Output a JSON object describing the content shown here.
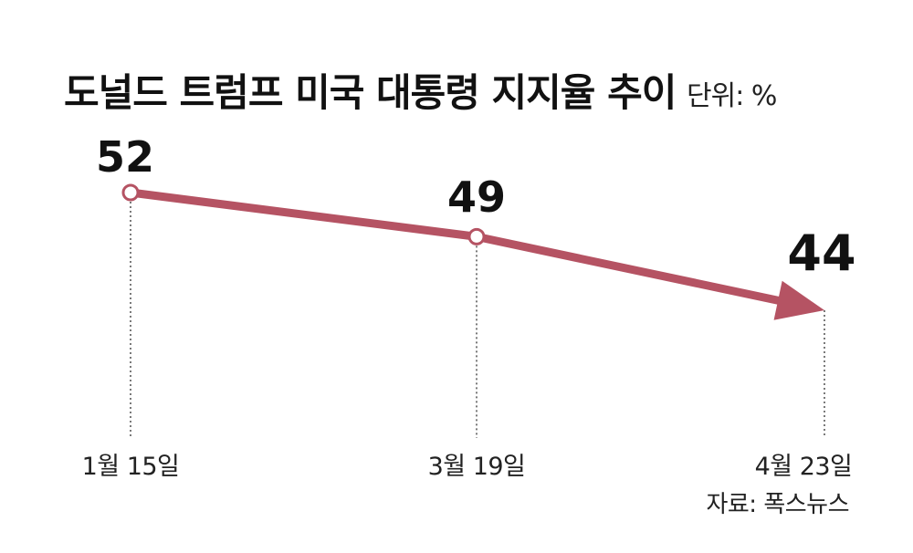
{
  "chart_data": {
    "type": "line",
    "title": "도널드 트럼프 미국 대통령 지지율 추이",
    "unit": "단위: %",
    "source": "자료: 폭스뉴스",
    "categories": [
      "1월 15일",
      "3월 19일",
      "4월 23일"
    ],
    "values": [
      52,
      49,
      44
    ],
    "value_labels": [
      "52",
      "49",
      "44"
    ],
    "last_point_marker": "arrow",
    "grid": false,
    "legend": "none",
    "colors": {
      "line": "#b55363",
      "marker_fill": "#ffffff",
      "text": "#111111",
      "guide": "#222222"
    }
  }
}
